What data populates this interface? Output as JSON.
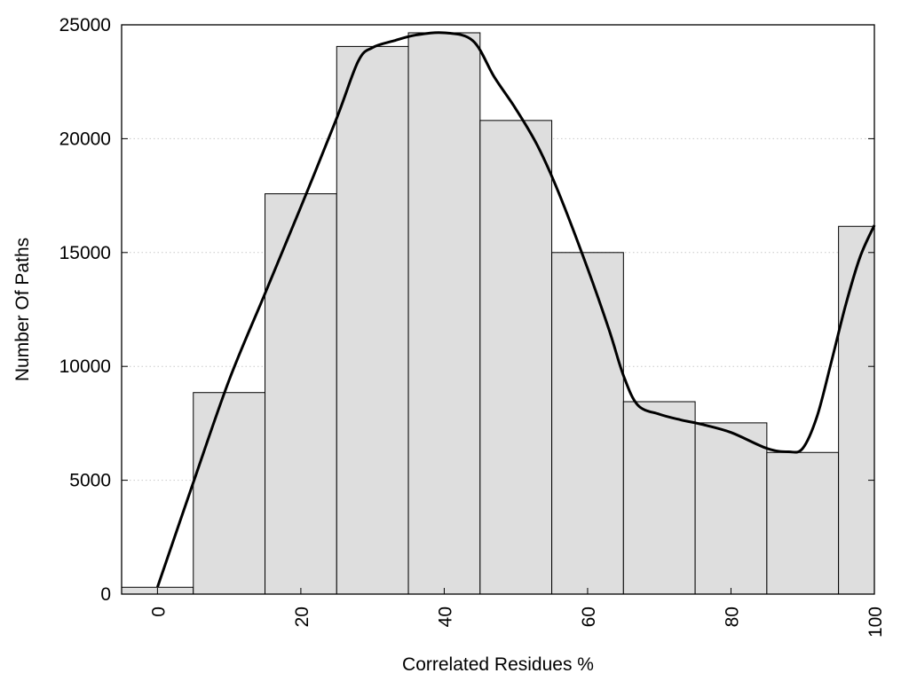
{
  "chart_data": {
    "type": "bar",
    "title": "",
    "xlabel": "Correlated Residues %",
    "ylabel": "Number Of Paths",
    "xlim": [
      -5,
      100
    ],
    "ylim": [
      0,
      25000
    ],
    "bin_width": 10,
    "x_ticks": [
      0,
      20,
      40,
      60,
      80,
      100
    ],
    "y_ticks": [
      0,
      5000,
      10000,
      15000,
      20000,
      25000
    ],
    "grid": "horizontal dotted",
    "legend": "none",
    "colors": {
      "bar_fill": "#dedede",
      "bar_edge": "#000000",
      "curve": "#000000",
      "grid": "#c8c8c8"
    },
    "series": [
      {
        "kind": "bar",
        "centers": [
          0,
          10,
          20,
          30,
          40,
          50,
          60,
          70,
          80,
          90,
          100
        ],
        "values": [
          300,
          8850,
          17580,
          24050,
          24650,
          20800,
          15000,
          8450,
          7520,
          6220,
          16150
        ]
      },
      {
        "kind": "line",
        "x": [
          0,
          5,
          10,
          15,
          20,
          25,
          28,
          30,
          33,
          36,
          40,
          44,
          47,
          50,
          53,
          56,
          60,
          63,
          65,
          67,
          70,
          73,
          76,
          80,
          85,
          88,
          90,
          92,
          94,
          96,
          98,
          100
        ],
        "y": [
          300,
          4900,
          9400,
          13200,
          17000,
          20900,
          23400,
          24000,
          24300,
          24550,
          24650,
          24300,
          22700,
          21300,
          19700,
          17600,
          14300,
          11600,
          9600,
          8300,
          7900,
          7650,
          7450,
          7100,
          6400,
          6250,
          6400,
          7800,
          10200,
          12700,
          14800,
          16200
        ]
      }
    ]
  }
}
